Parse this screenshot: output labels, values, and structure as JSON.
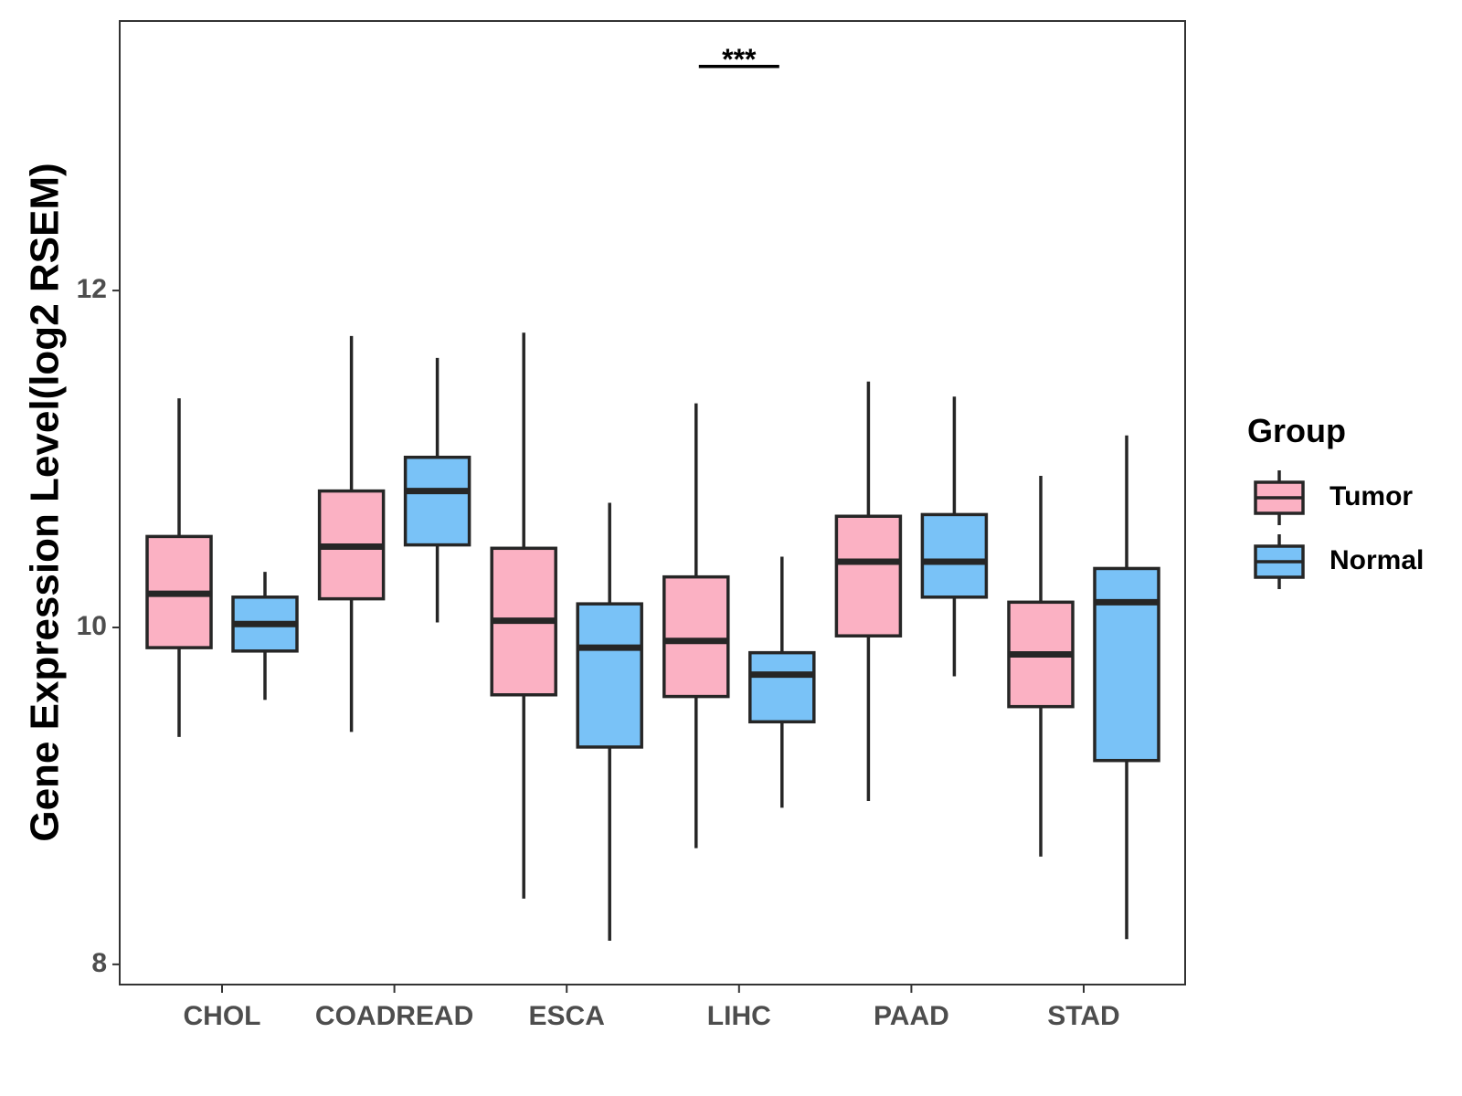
{
  "chart_data": {
    "type": "boxplot",
    "title": "",
    "xlabel": "",
    "ylabel": "Gene Expression Level(log2 RSEM)",
    "ylim": [
      7.88,
      13.6
    ],
    "yticks": [
      8,
      10,
      12
    ],
    "categories": [
      "CHOL",
      "COADREAD",
      "ESCA",
      "LIHC",
      "PAAD",
      "STAD"
    ],
    "legend": {
      "title": "Group",
      "position": "right",
      "entries": [
        {
          "name": "Tumor",
          "color": "#FBB1C3"
        },
        {
          "name": "Normal",
          "color": "#79C2F7"
        }
      ]
    },
    "series": [
      {
        "name": "Tumor",
        "color": "#FBB1C3",
        "boxes": [
          {
            "min": 9.35,
            "q1": 9.88,
            "median": 10.2,
            "q3": 10.54,
            "max": 11.36
          },
          {
            "min": 9.38,
            "q1": 10.17,
            "median": 10.48,
            "q3": 10.81,
            "max": 11.73
          },
          {
            "min": 8.39,
            "q1": 9.6,
            "median": 10.04,
            "q3": 10.47,
            "max": 11.75
          },
          {
            "min": 8.69,
            "q1": 9.59,
            "median": 9.92,
            "q3": 10.3,
            "max": 11.33
          },
          {
            "min": 8.97,
            "q1": 9.95,
            "median": 10.39,
            "q3": 10.66,
            "max": 11.46
          },
          {
            "min": 8.64,
            "q1": 9.53,
            "median": 9.84,
            "q3": 10.15,
            "max": 10.9
          }
        ]
      },
      {
        "name": "Normal",
        "color": "#79C2F7",
        "boxes": [
          {
            "min": 9.57,
            "q1": 9.86,
            "median": 10.02,
            "q3": 10.18,
            "max": 10.33
          },
          {
            "min": 10.03,
            "q1": 10.49,
            "median": 10.81,
            "q3": 11.01,
            "max": 11.6
          },
          {
            "min": 8.14,
            "q1": 9.29,
            "median": 9.88,
            "q3": 10.14,
            "max": 10.74
          },
          {
            "min": 8.93,
            "q1": 9.44,
            "median": 9.72,
            "q3": 9.85,
            "max": 10.42
          },
          {
            "min": 9.71,
            "q1": 10.18,
            "median": 10.39,
            "q3": 10.67,
            "max": 11.37
          },
          {
            "min": 8.15,
            "q1": 9.21,
            "median": 10.15,
            "q3": 10.35,
            "max": 11.14
          }
        ]
      }
    ],
    "annotations": [
      {
        "category": "LIHC",
        "label": "***",
        "y": 13.33
      }
    ]
  }
}
